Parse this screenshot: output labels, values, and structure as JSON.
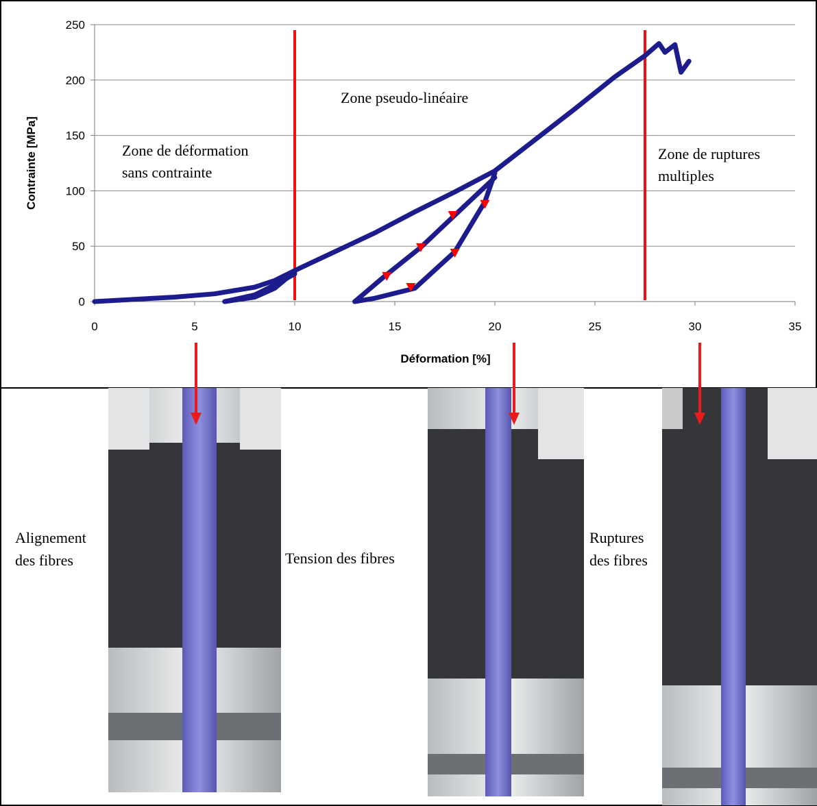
{
  "chart_data": {
    "type": "line",
    "xlabel": "Déformation [%]",
    "ylabel": "Contrainte [MPa]",
    "xlim": [
      0,
      35
    ],
    "ylim": [
      0,
      250
    ],
    "xticks": [
      0,
      5,
      10,
      15,
      20,
      25,
      30,
      35
    ],
    "yticks": [
      0,
      50,
      100,
      150,
      200,
      250
    ],
    "grid": "y",
    "series": [
      {
        "color": "#1c1c8c",
        "x": [
          0,
          2,
          4,
          6,
          8,
          9,
          10,
          12,
          14,
          16,
          18,
          20,
          22,
          24,
          26,
          27.5,
          28.2,
          28.5,
          29,
          29.3,
          29.7,
          null,
          20,
          19.5,
          18,
          16,
          14,
          13,
          null,
          13,
          14.5,
          16.3,
          18,
          20,
          null,
          10,
          9,
          8,
          6.5,
          null,
          6.5,
          8,
          9,
          10
        ],
        "values": [
          0,
          2,
          4,
          7,
          13,
          19,
          28,
          45,
          62,
          81,
          99,
          118,
          146,
          174,
          203,
          222,
          233,
          225,
          232,
          207,
          217,
          null,
          116,
          90,
          45,
          12,
          3,
          0,
          null,
          0,
          23,
          49,
          78,
          112,
          null,
          27,
          12,
          4,
          0,
          null,
          0,
          6,
          15,
          25
        ]
      },
      {
        "color": "#ff0000",
        "x": [
          14.6,
          16.3,
          17.9,
          19.5,
          18,
          15.8
        ],
        "values": [
          23,
          49,
          78,
          88,
          44,
          13
        ]
      }
    ],
    "vlines": {
      "color": "#ee1111",
      "x": [
        10,
        27.5
      ]
    },
    "annotations": [
      {
        "lines": [
          "Zone de déformation",
          "sans contrainte"
        ]
      },
      {
        "lines": [
          "Zone pseudo-linéaire"
        ]
      },
      {
        "lines": [
          "Zone de ruptures",
          "multiples"
        ]
      }
    ]
  },
  "photos": [
    {
      "caption": [
        "Alignement",
        "des fibres"
      ]
    },
    {
      "caption": [
        "Tension des fibres"
      ]
    },
    {
      "caption": [
        "Ruptures",
        "des fibres"
      ]
    }
  ]
}
